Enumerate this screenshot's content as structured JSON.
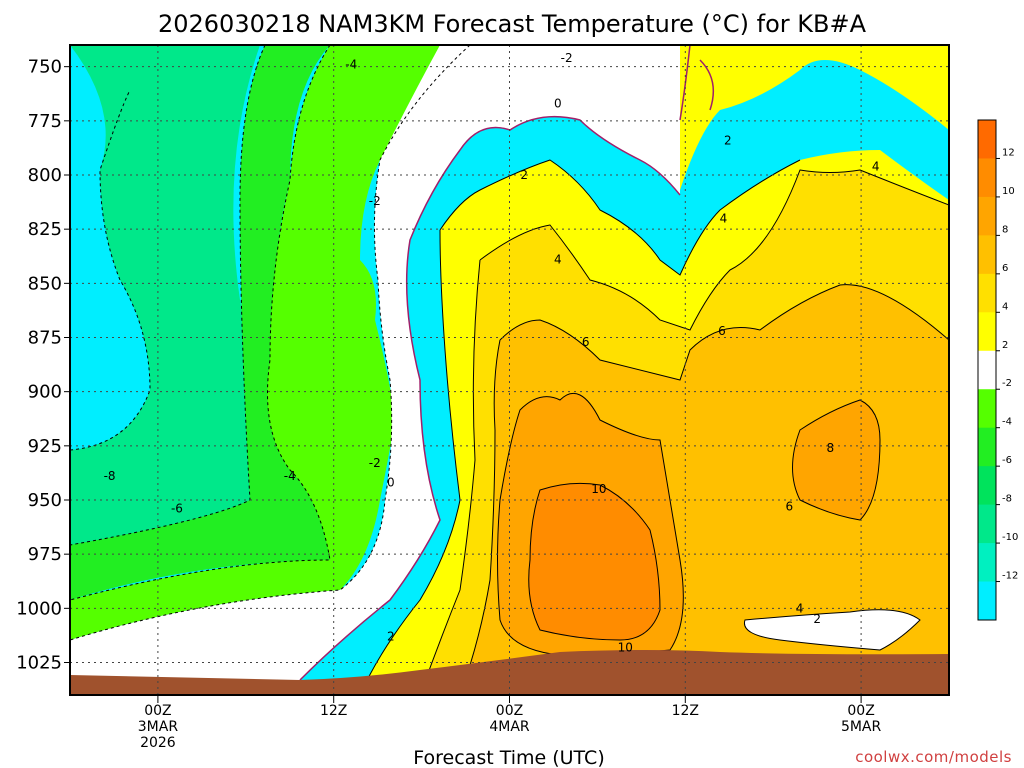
{
  "chart_data": {
    "type": "contour",
    "title": "2026030218 NAM3KM Forecast Temperature (°C) for KB#A",
    "xlabel": "Forecast Time (UTC)",
    "ylabel": "",
    "credit": "coolwx.com/models",
    "yaxis": {
      "unit": "hPa",
      "inverted": true,
      "range": [
        740,
        1040
      ],
      "ticks": [
        "750",
        "775",
        "800",
        "825",
        "850",
        "875",
        "900",
        "925",
        "950",
        "975",
        "1000",
        "1025"
      ]
    },
    "xaxis": {
      "range_hours": [
        -6,
        54
      ],
      "ticks": [
        {
          "hour": 0,
          "lines": [
            "00Z",
            "3MAR",
            "2026"
          ]
        },
        {
          "hour": 12,
          "lines": [
            "12Z"
          ]
        },
        {
          "hour": 24,
          "lines": [
            "00Z",
            "4MAR"
          ]
        },
        {
          "hour": 36,
          "lines": [
            "12Z"
          ]
        },
        {
          "hour": 48,
          "lines": [
            "00Z",
            "5MAR"
          ]
        }
      ]
    },
    "grid": true,
    "colorbar": {
      "placement": "right",
      "levels": [
        {
          "label": "12",
          "color": "#ff6a00"
        },
        {
          "label": "10",
          "color": "#ff8c00"
        },
        {
          "label": "8",
          "color": "#ffa500"
        },
        {
          "label": "6",
          "color": "#ffc000"
        },
        {
          "label": "4",
          "color": "#ffe000"
        },
        {
          "label": "2",
          "color": "#ffff00"
        },
        {
          "label": "-2",
          "color": "#ffffff"
        },
        {
          "label": "-4",
          "color": "#55ff00"
        },
        {
          "label": "-6",
          "color": "#22ee22"
        },
        {
          "label": "-8",
          "color": "#00e35c"
        },
        {
          "label": "-10",
          "color": "#00e88a"
        },
        {
          "label": "-12",
          "color": "#00f0c0"
        },
        {
          "label": "",
          "color": "#00eeff"
        }
      ]
    },
    "contour_labels": [
      {
        "text": "-4",
        "hour": 13.2,
        "hPa": 749
      },
      {
        "text": "-2",
        "hour": 27.9,
        "hPa": 746
      },
      {
        "text": "0",
        "hour": 27.3,
        "hPa": 767
      },
      {
        "text": "-2",
        "hour": 14.8,
        "hPa": 812
      },
      {
        "text": "2",
        "hour": 25.0,
        "hPa": 800
      },
      {
        "text": "2",
        "hour": 38.9,
        "hPa": 784
      },
      {
        "text": "4",
        "hour": 49.0,
        "hPa": 796
      },
      {
        "text": "4",
        "hour": 38.6,
        "hPa": 820
      },
      {
        "text": "4",
        "hour": 27.3,
        "hPa": 839
      },
      {
        "text": "6",
        "hour": 29.2,
        "hPa": 877
      },
      {
        "text": "6",
        "hour": 38.5,
        "hPa": 872
      },
      {
        "text": "8",
        "hour": 45.9,
        "hPa": 926
      },
      {
        "text": "10",
        "hour": 30.1,
        "hPa": 945
      },
      {
        "text": "10",
        "hour": 31.9,
        "hPa": 1018
      },
      {
        "text": "6",
        "hour": 43.1,
        "hPa": 953
      },
      {
        "text": "4",
        "hour": 43.8,
        "hPa": 1000
      },
      {
        "text": "2",
        "hour": 45.0,
        "hPa": 1005
      },
      {
        "text": "-2",
        "hour": 14.8,
        "hPa": 933
      },
      {
        "text": "0",
        "hour": 15.9,
        "hPa": 942
      },
      {
        "text": "2",
        "hour": 15.9,
        "hPa": 1013
      },
      {
        "text": "-4",
        "hour": 9.0,
        "hPa": 939
      },
      {
        "text": "-6",
        "hour": 1.3,
        "hPa": 954
      },
      {
        "text": "-8",
        "hour": -3.3,
        "hPa": 939
      }
    ]
  }
}
